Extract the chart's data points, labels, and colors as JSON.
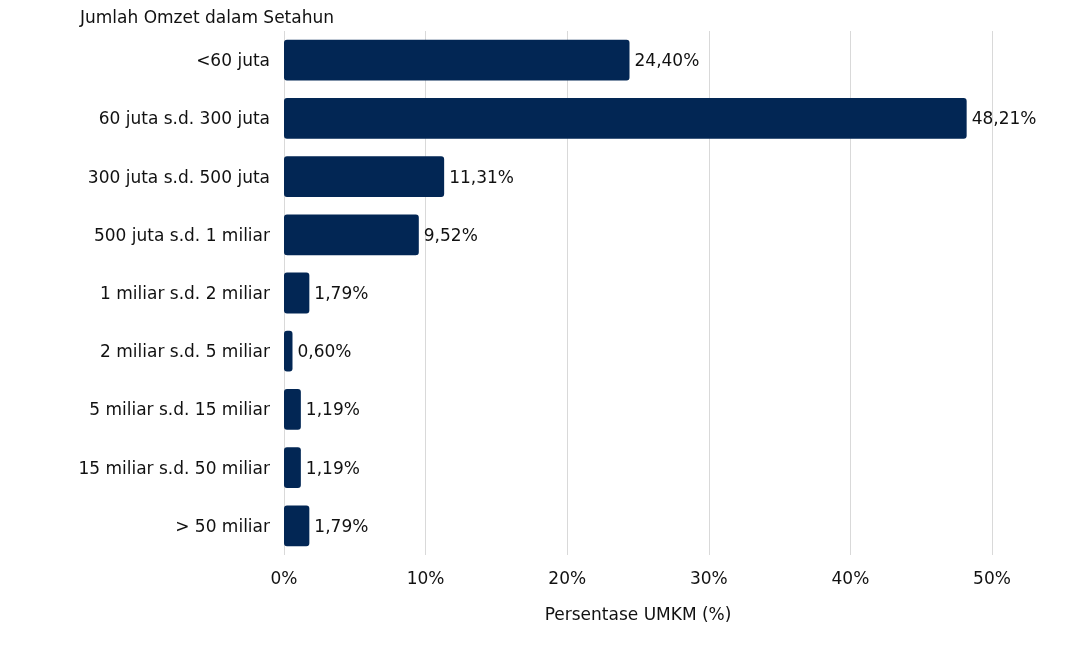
{
  "chart_data": {
    "type": "bar",
    "orientation": "horizontal",
    "ylabel": "Jumlah Omzet dalam Setahun",
    "xlabel": "Persentase UMKM (%)",
    "categories": [
      "<60 juta",
      "60 juta s.d. 300 juta",
      "300 juta s.d. 500 juta",
      "500 juta s.d. 1 miliar",
      "1 miliar s.d. 2 miliar",
      "2 miliar s.d. 5 miliar",
      "5 miliar s.d. 15 miliar",
      "15 miliar s.d. 50 miliar",
      "> 50 miliar"
    ],
    "values": [
      24.4,
      48.21,
      11.31,
      9.52,
      1.79,
      0.6,
      1.19,
      1.19,
      1.79
    ],
    "value_labels": [
      "24,40%",
      "48,21%",
      "11,31%",
      "9,52%",
      "1,79%",
      "0,60%",
      "1,19%",
      "1,19%",
      "1,79%"
    ],
    "color": "#022654",
    "xlim": [
      0,
      50
    ],
    "xticks": [
      {
        "value": 0,
        "label": "0%"
      },
      {
        "value": 10,
        "label": "10%"
      },
      {
        "value": 20,
        "label": "20%"
      },
      {
        "value": 30,
        "label": "30%"
      },
      {
        "value": 40,
        "label": "40%"
      },
      {
        "value": 50,
        "label": "50%"
      }
    ],
    "grid": "x"
  }
}
